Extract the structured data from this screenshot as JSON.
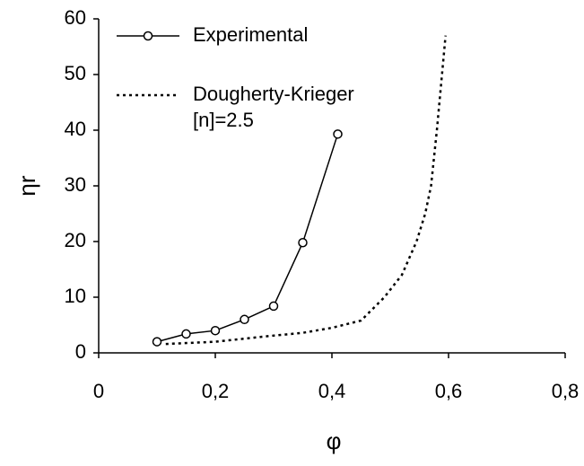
{
  "chart_data": {
    "type": "line",
    "x_label": "φ",
    "y_label": "ηr",
    "xlim": [
      0,
      0.8
    ],
    "xticks": [
      0,
      {
        "value": 0.2,
        "label": "0,2"
      },
      {
        "value": 0.4,
        "label": "0,4"
      },
      {
        "value": 0.6,
        "label": "0,6"
      },
      {
        "value": 0.8,
        "label": "0,8"
      }
    ],
    "ylim": [
      0,
      60
    ],
    "yticks": [
      0,
      10,
      20,
      30,
      40,
      50,
      60
    ],
    "legend": "upper left",
    "series": [
      {
        "name": "Experimental",
        "color": "#000000",
        "style": "solid-marker",
        "x": [
          0.1,
          0.15,
          0.2,
          0.25,
          0.3,
          0.35,
          0.41
        ],
        "values": [
          2.0,
          3.4,
          4.0,
          6.0,
          8.4,
          19.8,
          39.3
        ]
      },
      {
        "name": "Dougherty-Krieger [n]=2.5",
        "color": "#000000",
        "style": "dotted",
        "x": [
          0.115,
          0.2,
          0.29,
          0.35,
          0.4,
          0.45,
          0.49,
          0.52,
          0.545,
          0.56,
          0.57,
          0.58,
          0.595
        ],
        "values": [
          1.6,
          2.0,
          3.0,
          3.6,
          4.5,
          5.8,
          10,
          14,
          20,
          25,
          30,
          40,
          57
        ]
      }
    ]
  }
}
